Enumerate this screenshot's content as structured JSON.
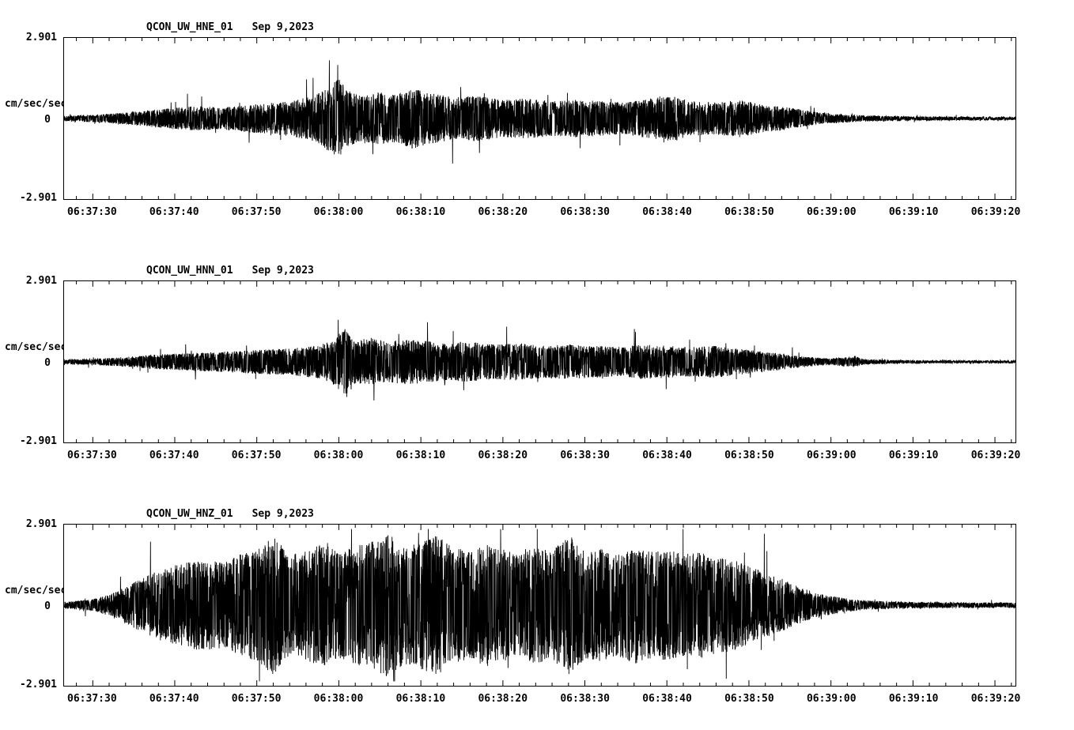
{
  "page": {
    "background": "#ffffff",
    "trace_color": "#000000"
  },
  "chart_data": [
    {
      "type": "line",
      "title": "QCON_UW_HNE_01",
      "date": "Sep 9,2023",
      "ylabel": "cm/sec/sec",
      "ylim": [
        -2.901,
        2.901
      ],
      "yticks": [
        {
          "label": "2.901",
          "value": 2.901
        },
        {
          "label": "0",
          "value": 0
        },
        {
          "label": "-2.901",
          "value": -2.901
        }
      ],
      "x_tick_labels": [
        "06:37:30",
        "06:37:40",
        "06:37:50",
        "06:38:00",
        "06:38:10",
        "06:38:20",
        "06:38:30",
        "06:38:40",
        "06:38:50",
        "06:39:00",
        "06:39:10",
        "06:39:20"
      ],
      "x_tick_seconds": [
        0,
        10,
        20,
        30,
        40,
        50,
        60,
        70,
        80,
        90,
        100,
        110
      ],
      "time_window_seconds": [
        -3.5,
        112.5
      ],
      "grid": false,
      "seed": 7,
      "envelope": [
        [
          -3.5,
          0.1
        ],
        [
          0,
          0.14
        ],
        [
          4,
          0.22
        ],
        [
          8,
          0.35
        ],
        [
          12,
          0.45
        ],
        [
          16,
          0.42
        ],
        [
          20,
          0.55
        ],
        [
          24,
          0.65
        ],
        [
          27,
          0.85
        ],
        [
          29,
          1.25
        ],
        [
          30,
          1.5
        ],
        [
          31,
          1.05
        ],
        [
          33,
          0.85
        ],
        [
          35,
          1.0
        ],
        [
          37,
          0.9
        ],
        [
          39,
          1.15
        ],
        [
          41,
          0.95
        ],
        [
          44,
          0.8
        ],
        [
          47,
          0.85
        ],
        [
          50,
          0.7
        ],
        [
          53,
          0.75
        ],
        [
          56,
          0.65
        ],
        [
          59,
          0.7
        ],
        [
          62,
          0.65
        ],
        [
          65,
          0.6
        ],
        [
          68,
          0.75
        ],
        [
          71,
          0.85
        ],
        [
          73,
          0.65
        ],
        [
          76,
          0.6
        ],
        [
          79,
          0.7
        ],
        [
          81,
          0.55
        ],
        [
          84,
          0.45
        ],
        [
          86,
          0.35
        ],
        [
          88,
          0.25
        ],
        [
          90,
          0.18
        ],
        [
          93,
          0.13
        ],
        [
          96,
          0.1
        ],
        [
          100,
          0.08
        ],
        [
          105,
          0.07
        ],
        [
          110,
          0.06
        ],
        [
          112.5,
          0.06
        ]
      ]
    },
    {
      "type": "line",
      "title": "QCON_UW_HNN_01",
      "date": "Sep 9,2023",
      "ylabel": "cm/sec/sec",
      "ylim": [
        -2.901,
        2.901
      ],
      "yticks": [
        {
          "label": "2.901",
          "value": 2.901
        },
        {
          "label": "0",
          "value": 0
        },
        {
          "label": "-2.901",
          "value": -2.901
        }
      ],
      "x_tick_labels": [
        "06:37:30",
        "06:37:40",
        "06:37:50",
        "06:38:00",
        "06:38:10",
        "06:38:20",
        "06:38:30",
        "06:38:40",
        "06:38:50",
        "06:39:00",
        "06:39:10",
        "06:39:20"
      ],
      "x_tick_seconds": [
        0,
        10,
        20,
        30,
        40,
        50,
        60,
        70,
        80,
        90,
        100,
        110
      ],
      "time_window_seconds": [
        -3.5,
        112.5
      ],
      "grid": false,
      "seed": 13,
      "envelope": [
        [
          -3.5,
          0.08
        ],
        [
          0,
          0.11
        ],
        [
          4,
          0.18
        ],
        [
          8,
          0.28
        ],
        [
          12,
          0.33
        ],
        [
          16,
          0.38
        ],
        [
          20,
          0.45
        ],
        [
          24,
          0.5
        ],
        [
          27,
          0.6
        ],
        [
          29,
          0.75
        ],
        [
          31,
          1.35
        ],
        [
          32,
          0.8
        ],
        [
          34,
          0.9
        ],
        [
          36,
          0.75
        ],
        [
          38,
          0.85
        ],
        [
          40,
          0.8
        ],
        [
          43,
          0.7
        ],
        [
          46,
          0.75
        ],
        [
          49,
          0.65
        ],
        [
          52,
          0.7
        ],
        [
          55,
          0.6
        ],
        [
          58,
          0.65
        ],
        [
          61,
          0.6
        ],
        [
          64,
          0.55
        ],
        [
          67,
          0.65
        ],
        [
          70,
          0.6
        ],
        [
          73,
          0.55
        ],
        [
          76,
          0.6
        ],
        [
          78,
          0.5
        ],
        [
          80,
          0.45
        ],
        [
          82,
          0.38
        ],
        [
          84,
          0.3
        ],
        [
          86,
          0.22
        ],
        [
          88,
          0.16
        ],
        [
          90,
          0.12
        ],
        [
          93,
          0.2
        ],
        [
          94,
          0.1
        ],
        [
          97,
          0.07
        ],
        [
          100,
          0.06
        ],
        [
          105,
          0.05
        ],
        [
          110,
          0.05
        ],
        [
          112.5,
          0.05
        ]
      ]
    },
    {
      "type": "line",
      "title": "QCON_UW_HNZ_01",
      "date": "Sep 9,2023",
      "ylabel": "cm/sec/sec",
      "ylim": [
        -2.901,
        2.901
      ],
      "yticks": [
        {
          "label": "2.901",
          "value": 2.901
        },
        {
          "label": "0",
          "value": 0
        },
        {
          "label": "-2.901",
          "value": -2.901
        }
      ],
      "x_tick_labels": [
        "06:37:30",
        "06:37:40",
        "06:37:50",
        "06:38:00",
        "06:38:10",
        "06:38:20",
        "06:38:30",
        "06:38:40",
        "06:38:50",
        "06:39:00",
        "06:39:10",
        "06:39:20"
      ],
      "x_tick_seconds": [
        0,
        10,
        20,
        30,
        40,
        50,
        60,
        70,
        80,
        90,
        100,
        110
      ],
      "time_window_seconds": [
        -3.5,
        112.5
      ],
      "grid": false,
      "seed": 29,
      "envelope": [
        [
          -3.5,
          0.12
        ],
        [
          0,
          0.22
        ],
        [
          2,
          0.4
        ],
        [
          4,
          0.7
        ],
        [
          6,
          1.0
        ],
        [
          8,
          1.3
        ],
        [
          10,
          1.5
        ],
        [
          13,
          1.7
        ],
        [
          16,
          1.6
        ],
        [
          18,
          1.9
        ],
        [
          20,
          2.1
        ],
        [
          22,
          2.6
        ],
        [
          24,
          1.9
        ],
        [
          26,
          2.1
        ],
        [
          28,
          2.3
        ],
        [
          30,
          2.0
        ],
        [
          32,
          2.2
        ],
        [
          34,
          2.4
        ],
        [
          36,
          2.7
        ],
        [
          38,
          2.2
        ],
        [
          40,
          2.4
        ],
        [
          42,
          2.6
        ],
        [
          44,
          2.2
        ],
        [
          46,
          2.0
        ],
        [
          48,
          2.3
        ],
        [
          50,
          2.1
        ],
        [
          52,
          1.9
        ],
        [
          54,
          2.2
        ],
        [
          56,
          2.0
        ],
        [
          58,
          2.7
        ],
        [
          60,
          2.0
        ],
        [
          62,
          2.1
        ],
        [
          64,
          1.9
        ],
        [
          66,
          2.2
        ],
        [
          68,
          2.0
        ],
        [
          70,
          2.1
        ],
        [
          72,
          1.9
        ],
        [
          74,
          2.0
        ],
        [
          76,
          1.8
        ],
        [
          78,
          1.7
        ],
        [
          80,
          1.5
        ],
        [
          82,
          1.2
        ],
        [
          84,
          1.0
        ],
        [
          86,
          0.7
        ],
        [
          88,
          0.5
        ],
        [
          90,
          0.35
        ],
        [
          92,
          0.25
        ],
        [
          94,
          0.18
        ],
        [
          97,
          0.14
        ],
        [
          100,
          0.12
        ],
        [
          105,
          0.1
        ],
        [
          110,
          0.1
        ],
        [
          112.5,
          0.1
        ]
      ]
    }
  ]
}
